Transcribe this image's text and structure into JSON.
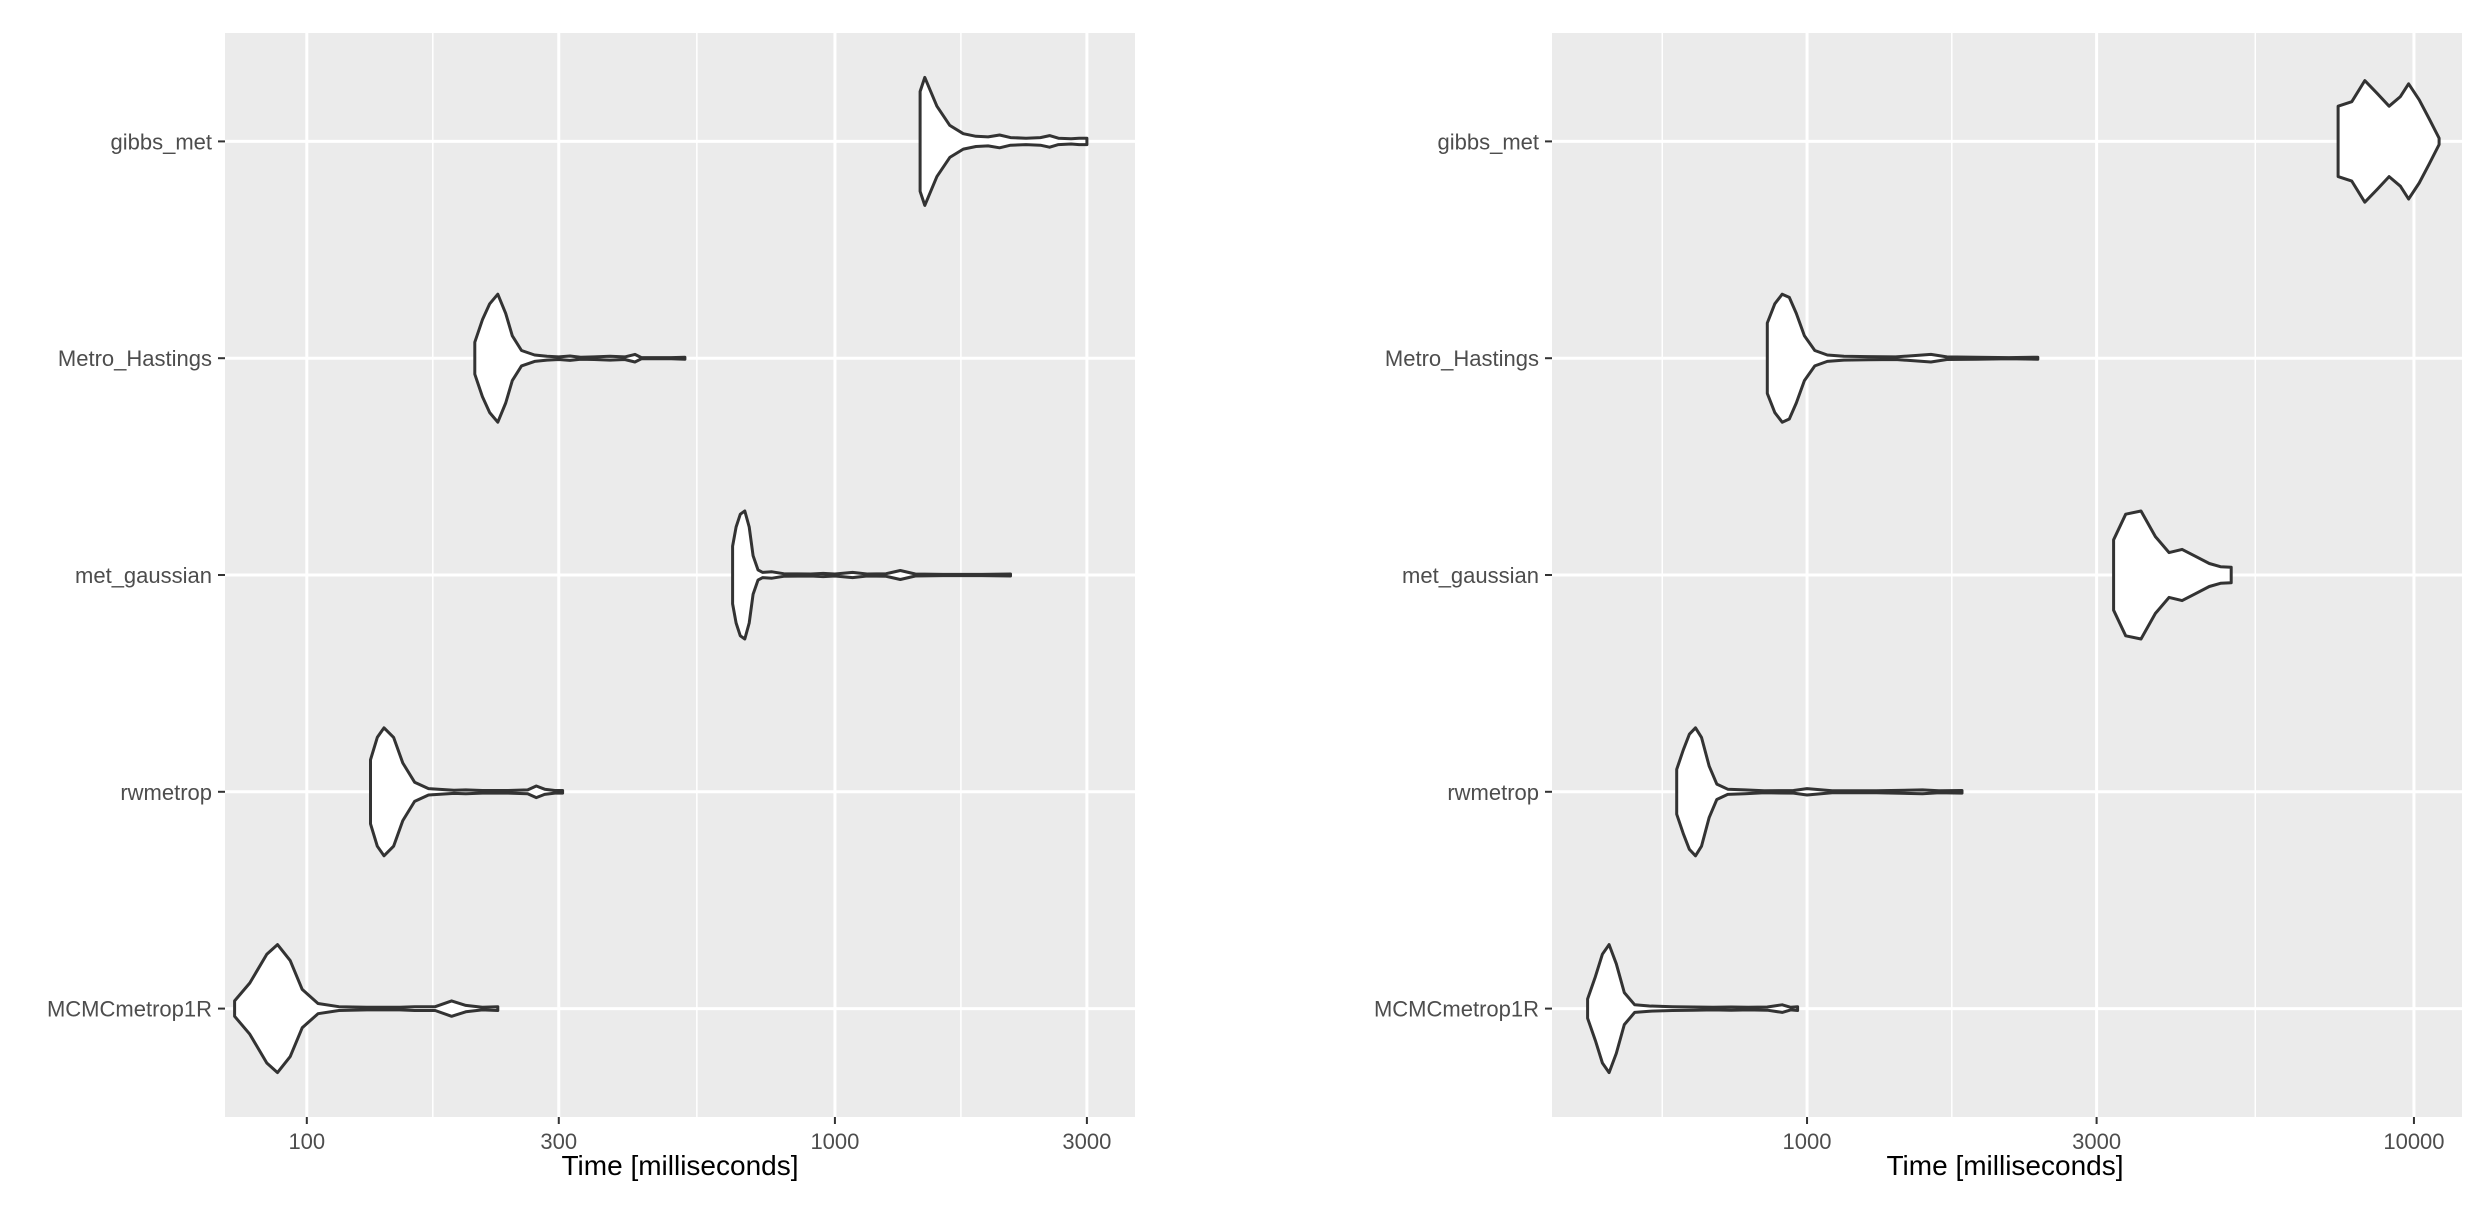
{
  "chart_data": [
    {
      "type": "violin",
      "orientation": "horizontal",
      "title": "",
      "xlabel": "Time [milliseconds]",
      "ylabel": "",
      "x_scale": "log10",
      "x_range": [
        70,
        3700
      ],
      "x_ticks": [
        100,
        300,
        1000,
        3000
      ],
      "x_tick_labels": [
        "100",
        "300",
        "1000",
        "3000"
      ],
      "categories": [
        "gibbs_met",
        "Metro_Hastings",
        "met_gaussian",
        "rwmetrop",
        "MCMCmetrop1R"
      ],
      "grid": true,
      "series": [
        {
          "category": "gibbs_met",
          "min": 1470,
          "max": 3000,
          "median": 1500,
          "profile": [
            [
              1450,
              0.78
            ],
            [
              1480,
              1.0
            ],
            [
              1560,
              0.55
            ],
            [
              1650,
              0.25
            ],
            [
              1750,
              0.12
            ],
            [
              1850,
              0.08
            ],
            [
              1950,
              0.07
            ],
            [
              2050,
              0.1
            ],
            [
              2150,
              0.06
            ],
            [
              2300,
              0.05
            ],
            [
              2450,
              0.06
            ],
            [
              2550,
              0.09
            ],
            [
              2650,
              0.05
            ],
            [
              2800,
              0.04
            ],
            [
              2900,
              0.05
            ],
            [
              3000,
              0.05
            ]
          ]
        },
        {
          "category": "Metro_Hastings",
          "min": 210,
          "max": 520,
          "median": 232,
          "profile": [
            [
              208,
              0.25
            ],
            [
              215,
              0.6
            ],
            [
              222,
              0.85
            ],
            [
              230,
              1.0
            ],
            [
              238,
              0.7
            ],
            [
              245,
              0.35
            ],
            [
              255,
              0.12
            ],
            [
              270,
              0.05
            ],
            [
              285,
              0.03
            ],
            [
              300,
              0.02
            ],
            [
              315,
              0.035
            ],
            [
              330,
              0.015
            ],
            [
              350,
              0.02
            ],
            [
              375,
              0.03
            ],
            [
              400,
              0.02
            ],
            [
              418,
              0.06
            ],
            [
              430,
              0.01
            ],
            [
              460,
              0.01
            ],
            [
              490,
              0.01
            ],
            [
              520,
              0.015
            ]
          ]
        },
        {
          "category": "met_gaussian",
          "min": 640,
          "max": 2150,
          "median": 680,
          "profile": [
            [
              640,
              0.45
            ],
            [
              650,
              0.75
            ],
            [
              662,
              0.95
            ],
            [
              675,
              1.0
            ],
            [
              688,
              0.75
            ],
            [
              700,
              0.3
            ],
            [
              715,
              0.08
            ],
            [
              730,
              0.04
            ],
            [
              760,
              0.05
            ],
            [
              800,
              0.02
            ],
            [
              900,
              0.015
            ],
            [
              950,
              0.025
            ],
            [
              1000,
              0.015
            ],
            [
              1080,
              0.04
            ],
            [
              1150,
              0.015
            ],
            [
              1250,
              0.02
            ],
            [
              1330,
              0.07
            ],
            [
              1420,
              0.015
            ],
            [
              1600,
              0.01
            ],
            [
              1900,
              0.01
            ],
            [
              2150,
              0.015
            ]
          ]
        },
        {
          "category": "rwmetrop",
          "min": 132,
          "max": 305,
          "median": 140,
          "profile": [
            [
              132,
              0.5
            ],
            [
              136,
              0.85
            ],
            [
              140,
              1.0
            ],
            [
              146,
              0.85
            ],
            [
              152,
              0.45
            ],
            [
              160,
              0.15
            ],
            [
              170,
              0.05
            ],
            [
              190,
              0.025
            ],
            [
              200,
              0.03
            ],
            [
              215,
              0.02
            ],
            [
              240,
              0.02
            ],
            [
              262,
              0.03
            ],
            [
              272,
              0.09
            ],
            [
              282,
              0.04
            ],
            [
              295,
              0.02
            ],
            [
              305,
              0.02
            ]
          ]
        },
        {
          "category": "MCMCmetrop1R",
          "min": 73,
          "max": 230,
          "median": 88,
          "profile": [
            [
              73,
              0.12
            ],
            [
              78,
              0.4
            ],
            [
              84,
              0.85
            ],
            [
              88,
              1.0
            ],
            [
              93,
              0.75
            ],
            [
              98,
              0.3
            ],
            [
              105,
              0.08
            ],
            [
              115,
              0.03
            ],
            [
              130,
              0.02
            ],
            [
              150,
              0.02
            ],
            [
              160,
              0.03
            ],
            [
              175,
              0.03
            ],
            [
              188,
              0.12
            ],
            [
              200,
              0.05
            ],
            [
              215,
              0.02
            ],
            [
              230,
              0.03
            ]
          ]
        }
      ]
    },
    {
      "type": "violin",
      "orientation": "horizontal",
      "title": "",
      "xlabel": "Time [milliseconds]",
      "ylabel": "",
      "x_scale": "log10",
      "x_range": [
        380,
        12000
      ],
      "x_ticks": [
        1000,
        3000,
        10000
      ],
      "x_tick_labels": [
        "1000",
        "3000",
        "10000"
      ],
      "categories": [
        "gibbs_met",
        "Metro_Hastings",
        "met_gaussian",
        "rwmetrop",
        "MCMCmetrop1R"
      ],
      "grid": true,
      "series": [
        {
          "category": "gibbs_met",
          "min": 7500,
          "max": 11000,
          "median": 9100,
          "profile": [
            [
              7500,
              0.55
            ],
            [
              7900,
              0.62
            ],
            [
              8300,
              0.95
            ],
            [
              8700,
              0.75
            ],
            [
              9100,
              0.55
            ],
            [
              9500,
              0.7
            ],
            [
              9800,
              0.9
            ],
            [
              10200,
              0.65
            ],
            [
              10600,
              0.35
            ],
            [
              11000,
              0.05
            ]
          ]
        },
        {
          "category": "Metro_Hastings",
          "min": 860,
          "max": 2400,
          "median": 950,
          "profile": [
            [
              860,
              0.55
            ],
            [
              885,
              0.85
            ],
            [
              910,
              1.0
            ],
            [
              935,
              0.95
            ],
            [
              960,
              0.7
            ],
            [
              990,
              0.35
            ],
            [
              1030,
              0.12
            ],
            [
              1080,
              0.05
            ],
            [
              1150,
              0.03
            ],
            [
              1260,
              0.025
            ],
            [
              1400,
              0.02
            ],
            [
              1500,
              0.04
            ],
            [
              1600,
              0.06
            ],
            [
              1700,
              0.02
            ],
            [
              1900,
              0.015
            ],
            [
              2150,
              0.01
            ],
            [
              2400,
              0.015
            ]
          ]
        },
        {
          "category": "met_gaussian",
          "min": 3200,
          "max": 5000,
          "median": 3550,
          "profile": [
            [
              3200,
              0.55
            ],
            [
              3350,
              0.95
            ],
            [
              3550,
              1.0
            ],
            [
              3750,
              0.6
            ],
            [
              3950,
              0.35
            ],
            [
              4150,
              0.4
            ],
            [
              4350,
              0.3
            ],
            [
              4600,
              0.18
            ],
            [
              4800,
              0.13
            ],
            [
              5000,
              0.12
            ]
          ]
        },
        {
          "category": "rwmetrop",
          "min": 610,
          "max": 1800,
          "median": 650,
          "profile": [
            [
              610,
              0.35
            ],
            [
              625,
              0.65
            ],
            [
              640,
              0.9
            ],
            [
              655,
              1.0
            ],
            [
              670,
              0.85
            ],
            [
              690,
              0.4
            ],
            [
              710,
              0.12
            ],
            [
              740,
              0.04
            ],
            [
              790,
              0.03
            ],
            [
              850,
              0.015
            ],
            [
              950,
              0.02
            ],
            [
              1000,
              0.05
            ],
            [
              1100,
              0.015
            ],
            [
              1300,
              0.015
            ],
            [
              1550,
              0.03
            ],
            [
              1650,
              0.015
            ],
            [
              1800,
              0.02
            ]
          ]
        },
        {
          "category": "MCMCmetrop1R",
          "min": 435,
          "max": 965,
          "median": 470,
          "profile": [
            [
              435,
              0.15
            ],
            [
              448,
              0.5
            ],
            [
              460,
              0.85
            ],
            [
              472,
              1.0
            ],
            [
              485,
              0.7
            ],
            [
              500,
              0.25
            ],
            [
              520,
              0.06
            ],
            [
              550,
              0.04
            ],
            [
              600,
              0.03
            ],
            [
              650,
              0.025
            ],
            [
              700,
              0.02
            ],
            [
              750,
              0.025
            ],
            [
              800,
              0.02
            ],
            [
              860,
              0.025
            ],
            [
              910,
              0.06
            ],
            [
              940,
              0.02
            ],
            [
              965,
              0.03
            ]
          ]
        }
      ]
    }
  ]
}
